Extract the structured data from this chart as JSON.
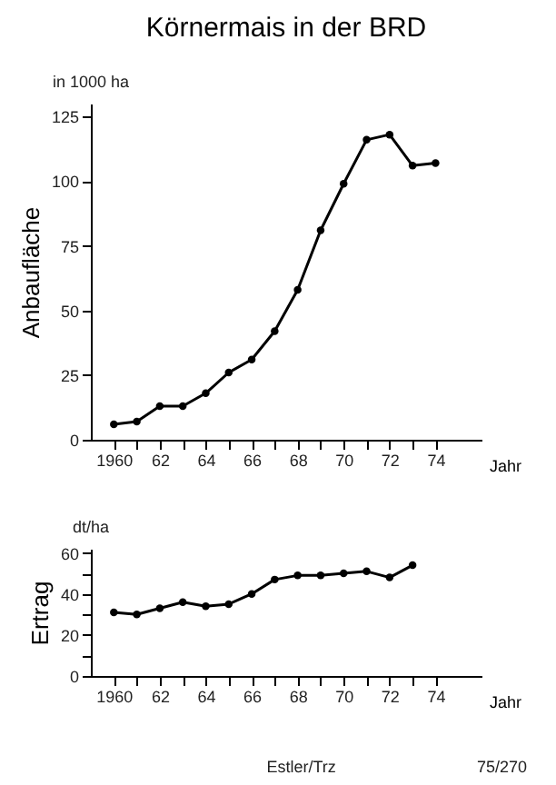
{
  "chart_data": [
    {
      "type": "line",
      "title": "Körnermais in der BRD",
      "ylabel": "Anbaufläche",
      "xlabel": "Jahr",
      "annotations": [
        "in 1000 ha"
      ],
      "marker": "circle",
      "line_style": "solid",
      "color": "#000000",
      "x": [
        1960,
        1961,
        1962,
        1963,
        1964,
        1965,
        1966,
        1967,
        1968,
        1969,
        1970,
        1971,
        1972,
        1973,
        1974
      ],
      "values": [
        6,
        7,
        13,
        13,
        18,
        26,
        31,
        42,
        58,
        81,
        99,
        116,
        118,
        106,
        107
      ],
      "xlim": [
        1959,
        1976
      ],
      "ylim": [
        0,
        130
      ],
      "yticks": [
        0,
        25,
        50,
        75,
        100,
        125
      ],
      "xticks": [
        {
          "value": 1960,
          "label": "1960"
        },
        {
          "value": 1961,
          "label": null
        },
        {
          "value": 1962,
          "label": "62"
        },
        {
          "value": 1963,
          "label": null
        },
        {
          "value": 1964,
          "label": "64"
        },
        {
          "value": 1965,
          "label": null
        },
        {
          "value": 1966,
          "label": "66"
        },
        {
          "value": 1967,
          "label": null
        },
        {
          "value": 1968,
          "label": "68"
        },
        {
          "value": 1969,
          "label": null
        },
        {
          "value": 1970,
          "label": "70"
        },
        {
          "value": 1971,
          "label": null
        },
        {
          "value": 1972,
          "label": "72"
        },
        {
          "value": 1973,
          "label": null
        },
        {
          "value": 1974,
          "label": "74"
        }
      ]
    },
    {
      "type": "line",
      "ylabel": "Ertrag",
      "xlabel": "Jahr",
      "annotations": [
        "dt/ha",
        "Estler/Trz",
        "75/270"
      ],
      "marker": "circle",
      "line_style": "solid",
      "color": "#000000",
      "x": [
        1960,
        1961,
        1962,
        1963,
        1964,
        1965,
        1966,
        1967,
        1968,
        1969,
        1970,
        1971,
        1972,
        1973
      ],
      "values": [
        31,
        30,
        33,
        36,
        34,
        35,
        40,
        47,
        49,
        49,
        50,
        51,
        48,
        54
      ],
      "xlim": [
        1959,
        1976
      ],
      "ylim": [
        0,
        62
      ],
      "yticks": [
        0,
        {
          "value": 10,
          "label": null
        },
        20,
        {
          "value": 30,
          "label": null
        },
        40,
        {
          "value": 50,
          "label": null
        },
        60
      ],
      "xticks": [
        {
          "value": 1960,
          "label": "1960"
        },
        {
          "value": 1961,
          "label": null
        },
        {
          "value": 1962,
          "label": "62"
        },
        {
          "value": 1963,
          "label": null
        },
        {
          "value": 1964,
          "label": "64"
        },
        {
          "value": 1965,
          "label": null
        },
        {
          "value": 1966,
          "label": "66"
        },
        {
          "value": 1967,
          "label": null
        },
        {
          "value": 1968,
          "label": "68"
        },
        {
          "value": 1969,
          "label": null
        },
        {
          "value": 1970,
          "label": "70"
        },
        {
          "value": 1971,
          "label": null
        },
        {
          "value": 1972,
          "label": "72"
        },
        {
          "value": 1973,
          "label": null
        },
        {
          "value": 1974,
          "label": "74"
        }
      ]
    }
  ]
}
